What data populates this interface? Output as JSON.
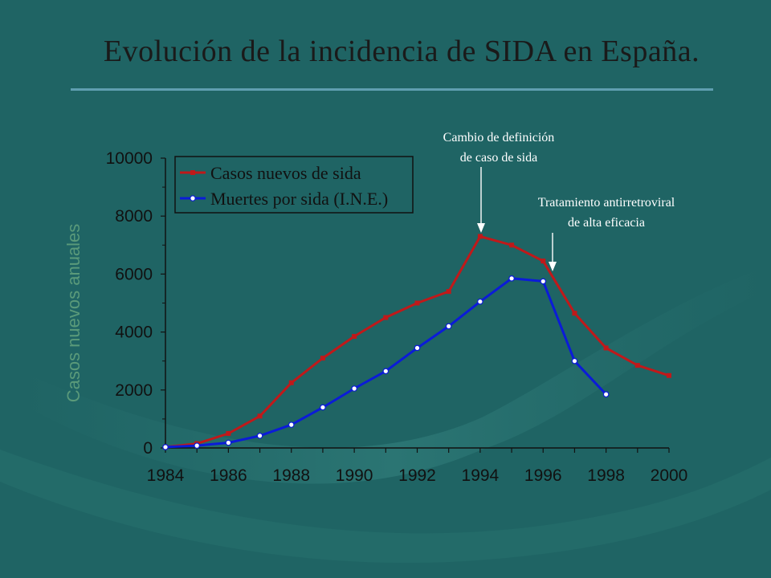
{
  "slide": {
    "title": "Evolución de la incidencia de SIDA en España."
  },
  "colors": {
    "background": "#1f6464",
    "series_red": "#c0191a",
    "series_blue": "#0b1bd8",
    "rule": "#5f9fb0"
  },
  "chart_data": {
    "type": "line",
    "title": "",
    "xlabel": "",
    "ylabel": "Casos nuevos anuales",
    "xlim": [
      1984,
      2000
    ],
    "ylim": [
      0,
      10000
    ],
    "x_ticks": [
      "1984",
      "1986",
      "1988",
      "1990",
      "1992",
      "1994",
      "1996",
      "1998",
      "2000"
    ],
    "y_ticks": [
      "0",
      "2000",
      "4000",
      "6000",
      "8000",
      "10000"
    ],
    "legend_position": "top-left",
    "grid": false,
    "series": [
      {
        "name": "Casos nuevos de sida",
        "color": "#c0191a",
        "marker": "square",
        "x": [
          1984,
          1985,
          1986,
          1987,
          1988,
          1989,
          1990,
          1991,
          1992,
          1993,
          1994,
          1995,
          1996,
          1997,
          1998,
          1999,
          2000
        ],
        "values": [
          30,
          150,
          500,
          1100,
          2250,
          3100,
          3850,
          4500,
          5000,
          5400,
          7300,
          7000,
          6450,
          4650,
          3450,
          2850,
          2500
        ]
      },
      {
        "name": "Muertes por sida (I.N.E.)",
        "color": "#0b1bd8",
        "marker": "circle",
        "x": [
          1984,
          1985,
          1986,
          1987,
          1988,
          1989,
          1990,
          1991,
          1992,
          1993,
          1994,
          1995,
          1996,
          1997,
          1998
        ],
        "values": [
          30,
          80,
          180,
          420,
          800,
          1400,
          2050,
          2650,
          3450,
          4200,
          5050,
          5850,
          5750,
          3000,
          1850
        ]
      }
    ],
    "annotations": [
      {
        "line1": "Cambio de definición",
        "line2": "de caso de sida",
        "x": 1994
      },
      {
        "line1": "Tratamiento antirretroviral",
        "line2": "de alta eficacia",
        "x": 1996.3
      }
    ]
  }
}
